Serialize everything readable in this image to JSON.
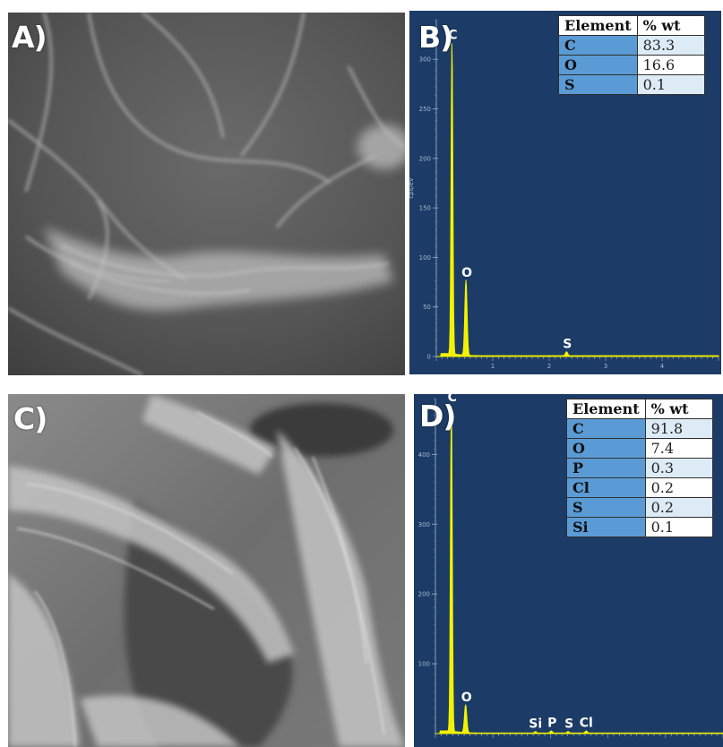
{
  "panels": {
    "a": {
      "label": "A)"
    },
    "b": {
      "label": "B)"
    },
    "c": {
      "label": "C)"
    },
    "d": {
      "label": "D)"
    }
  },
  "colors": {
    "eds_background": "#1c3b66",
    "spectrum": "#f2f200",
    "table_element_cell": "#5b9bd5",
    "table_value_cell": "#ddebf7"
  },
  "chart_data": [
    {
      "type": "line",
      "panel": "B",
      "ylabel": "cps/eV",
      "y_ticks": [
        "0",
        "50",
        "100",
        "150",
        "200",
        "250",
        "300"
      ],
      "x_ticks": [
        "1",
        "2",
        "3",
        "4"
      ],
      "xlim": [
        0,
        5.0
      ],
      "ylim": [
        0,
        340
      ],
      "peaks": [
        {
          "label": "C",
          "x": 0.277,
          "y": 316
        },
        {
          "label": "O",
          "x": 0.525,
          "y": 76
        },
        {
          "label": "S",
          "x": 2.307,
          "y": 4
        }
      ],
      "table": {
        "headers": [
          "Element",
          "% wt"
        ],
        "rows": [
          {
            "element": "C",
            "wt": "83.3"
          },
          {
            "element": "O",
            "wt": "16.6"
          },
          {
            "element": "S",
            "wt": "0.1"
          }
        ]
      }
    },
    {
      "type": "line",
      "panel": "D",
      "y_ticks": [
        "100",
        "200",
        "300",
        "400"
      ],
      "xlim": [
        0,
        5.0
      ],
      "ylim": [
        0,
        480
      ],
      "peaks": [
        {
          "label": "C",
          "x": 0.277,
          "y": 470
        },
        {
          "label": "O",
          "x": 0.525,
          "y": 40
        },
        {
          "label": "Si",
          "x": 1.74,
          "y": 2
        },
        {
          "label": "P",
          "x": 2.013,
          "y": 3
        },
        {
          "label": "S",
          "x": 2.307,
          "y": 2
        },
        {
          "label": "Cl",
          "x": 2.622,
          "y": 3
        }
      ],
      "table": {
        "headers": [
          "Element",
          "% wt"
        ],
        "rows": [
          {
            "element": "C",
            "wt": "91.8"
          },
          {
            "element": "O",
            "wt": "7.4"
          },
          {
            "element": "P",
            "wt": "0.3"
          },
          {
            "element": "Cl",
            "wt": "0.2"
          },
          {
            "element": "S",
            "wt": "0.2"
          },
          {
            "element": "Si",
            "wt": "0.1"
          }
        ]
      }
    }
  ]
}
